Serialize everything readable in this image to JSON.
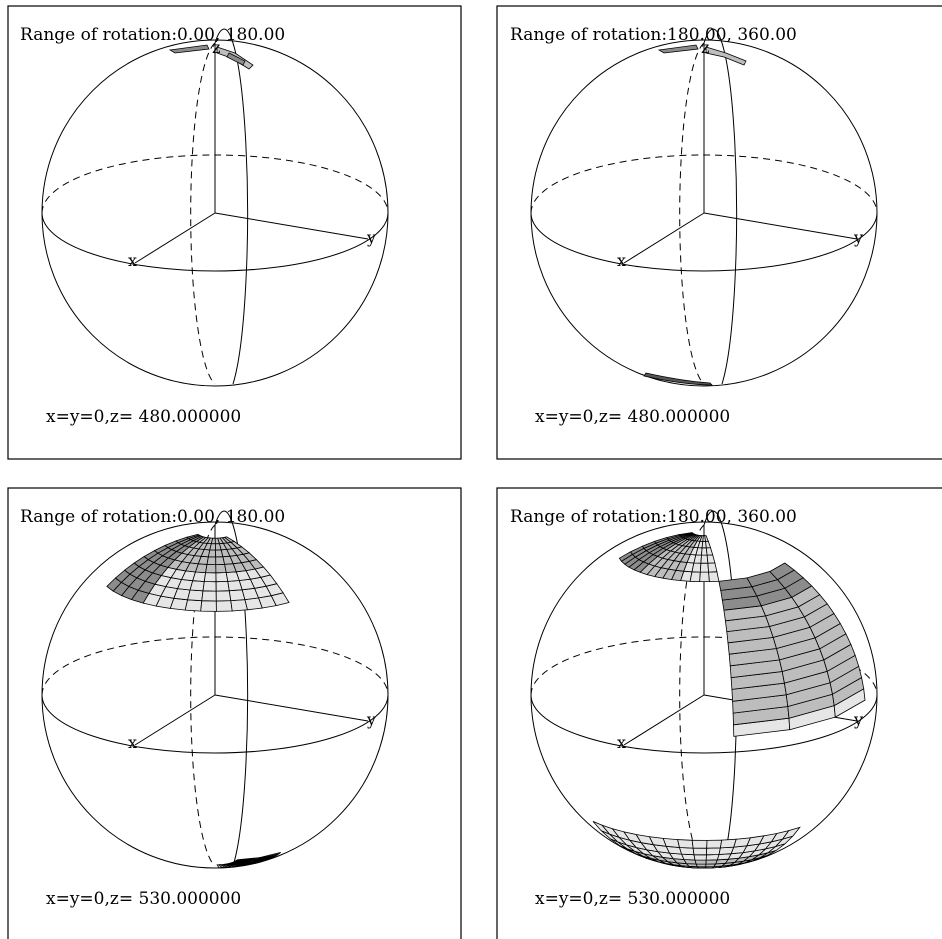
{
  "panels": [
    {
      "rotation_label": "Range of rotation:0.00, 180.00",
      "position_label": "x=y=0,z= 480.000000",
      "axis_x": "x",
      "axis_y": "y",
      "axis_z": "z",
      "patches": [
        "north-cap-small"
      ]
    },
    {
      "rotation_label": "Range of rotation:180.00, 360.00",
      "position_label": "x=y=0,z= 480.000000",
      "axis_x": "x",
      "axis_y": "y",
      "axis_z": "z",
      "patches": [
        "north-cap-small",
        "south-sliver"
      ]
    },
    {
      "rotation_label": "Range of rotation:0.00, 180.00",
      "position_label": "x=y=0,z= 530.000000",
      "axis_x": "x",
      "axis_y": "y",
      "axis_z": "z",
      "patches": [
        "north-cap-left-fan",
        "south-right-strip"
      ]
    },
    {
      "rotation_label": "Range of rotation:180.00, 360.00",
      "position_label": "x=y=0,z= 530.000000",
      "axis_x": "x",
      "axis_y": "y",
      "axis_z": "z",
      "patches": [
        "north-cap-right-arc",
        "south-bowl"
      ]
    }
  ],
  "colors": {
    "tile_light": "#e6e6e6",
    "tile_mid": "#bdbdbd",
    "tile_dark": "#8c8c8c",
    "line": "#000000",
    "background": "#ffffff"
  }
}
